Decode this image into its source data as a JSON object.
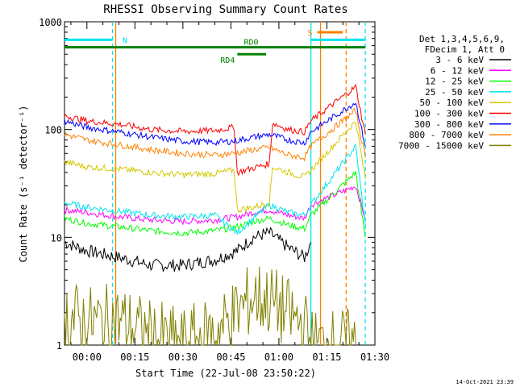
{
  "chart_data": {
    "type": "line",
    "title": "RHESSI Observing Summary Count Rates",
    "xlabel": "Start Time (22-Jul-08 23:50:22)",
    "ylabel": "Count Rate (s⁻¹ detector⁻¹)",
    "y_scale": "log",
    "ylim": [
      1,
      1000
    ],
    "xlim": [
      "23:53",
      "01:30"
    ],
    "x_ticks": [
      "00:00",
      "00:15",
      "00:30",
      "00:45",
      "01:00",
      "01:15",
      "01:30"
    ],
    "y_ticks": [
      "1",
      "10",
      "100",
      "1000"
    ],
    "legend_header": [
      "Det 1,3,4,5,6,9,",
      "FDecim 1, Att 0"
    ],
    "legend_position": "right",
    "footer": "14-Oct-2021 23:39",
    "flags": [
      {
        "label": "N",
        "start": "23:53",
        "end": "00:08",
        "level": 680,
        "color": "#00e5ee"
      },
      {
        "label": "",
        "start": "01:10",
        "end": "01:27",
        "level": 680,
        "color": "#00e5ee"
      },
      {
        "label": "S",
        "start": "01:12",
        "end": "01:20",
        "level": 800,
        "color": "#ff8000"
      },
      {
        "label": "RD0",
        "start": "23:53",
        "end": "01:27",
        "level": 580,
        "color": "#008000"
      },
      {
        "label": "RD4",
        "start": "00:47",
        "end": "00:56",
        "level": 500,
        "color": "#008000"
      }
    ],
    "vertical_markers": [
      {
        "time": "00:08",
        "color": "#00e5ee",
        "style": "dashed"
      },
      {
        "time": "01:10",
        "color": "#00e5ee",
        "style": "solid"
      },
      {
        "time": "01:27",
        "color": "#00e5ee",
        "style": "dashed"
      },
      {
        "time": "00:09",
        "color": "#ff8000",
        "style": "solid"
      },
      {
        "time": "01:13",
        "color": "#ff8000",
        "style": "solid"
      },
      {
        "time": "01:21",
        "color": "#ff8000",
        "style": "dashed"
      }
    ],
    "series": [
      {
        "name": "3 - 6 keV",
        "color": "#000000",
        "points": [
          [
            "23:53",
            9
          ],
          [
            "00:00",
            7.5
          ],
          [
            "00:10",
            6.5
          ],
          [
            "00:20",
            5.5
          ],
          [
            "00:30",
            5.5
          ],
          [
            "00:40",
            6.2
          ],
          [
            "00:47",
            7.5
          ],
          [
            "00:52",
            10
          ],
          [
            "00:57",
            11
          ],
          [
            "01:03",
            8
          ],
          [
            "01:08",
            6.5
          ],
          [
            "01:10",
            9
          ]
        ]
      },
      {
        "name": "6 - 12 keV",
        "color": "#ff00ff",
        "points": [
          [
            "23:53",
            18
          ],
          [
            "00:00",
            17
          ],
          [
            "00:10",
            15.5
          ],
          [
            "00:20",
            14.5
          ],
          [
            "00:30",
            14
          ],
          [
            "00:40",
            14.5
          ],
          [
            "00:47",
            15.5
          ],
          [
            "00:52",
            17
          ],
          [
            "00:57",
            18
          ],
          [
            "01:03",
            16
          ],
          [
            "01:08",
            15
          ],
          [
            "01:10",
            20
          ],
          [
            "01:24",
            30
          ],
          [
            "01:27",
            15
          ]
        ]
      },
      {
        "name": "12 - 25 keV",
        "color": "#00ff00",
        "points": [
          [
            "23:53",
            15
          ],
          [
            "00:00",
            13.5
          ],
          [
            "00:10",
            12.5
          ],
          [
            "00:20",
            11.5
          ],
          [
            "00:30",
            11
          ],
          [
            "00:40",
            11.5
          ],
          [
            "00:47",
            12.5
          ],
          [
            "00:52",
            14
          ],
          [
            "00:57",
            15
          ],
          [
            "01:03",
            13
          ],
          [
            "01:08",
            12
          ],
          [
            "01:10",
            16
          ],
          [
            "01:24",
            40
          ],
          [
            "01:27",
            10
          ]
        ]
      },
      {
        "name": "25 - 50 keV",
        "color": "#00e5ee",
        "points": [
          [
            "23:53",
            21
          ],
          [
            "00:00",
            19
          ],
          [
            "00:10",
            17.5
          ],
          [
            "00:20",
            16
          ],
          [
            "00:30",
            15.5
          ],
          [
            "00:40",
            16
          ],
          [
            "00:47",
            11
          ],
          [
            "00:52",
            15
          ],
          [
            "00:57",
            20
          ],
          [
            "01:03",
            17
          ],
          [
            "01:08",
            16
          ],
          [
            "01:10",
            20
          ],
          [
            "01:24",
            70
          ],
          [
            "01:27",
            13
          ]
        ]
      },
      {
        "name": "50 - 100 keV",
        "color": "#d4c800",
        "points": [
          [
            "23:53",
            50
          ],
          [
            "00:00",
            45
          ],
          [
            "00:10",
            43
          ],
          [
            "00:20",
            40
          ],
          [
            "00:30",
            38
          ],
          [
            "00:40",
            39
          ],
          [
            "00:46",
            42
          ],
          [
            "00:47",
            18
          ],
          [
            "00:52",
            19
          ],
          [
            "00:57",
            21
          ],
          [
            "00:58",
            45
          ],
          [
            "01:03",
            40
          ],
          [
            "01:08",
            36
          ],
          [
            "01:10",
            42
          ],
          [
            "01:24",
            120
          ],
          [
            "01:27",
            35
          ]
        ]
      },
      {
        "name": "100 - 300 keV",
        "color": "#ff0000",
        "points": [
          [
            "23:53",
            135
          ],
          [
            "00:00",
            120
          ],
          [
            "00:10",
            112
          ],
          [
            "00:20",
            100
          ],
          [
            "00:30",
            96
          ],
          [
            "00:40",
            98
          ],
          [
            "00:46",
            105
          ],
          [
            "00:47",
            40
          ],
          [
            "00:52",
            44
          ],
          [
            "00:57",
            48
          ],
          [
            "00:58",
            115
          ],
          [
            "01:03",
            100
          ],
          [
            "01:08",
            95
          ],
          [
            "01:10",
            120
          ],
          [
            "01:24",
            250
          ],
          [
            "01:27",
            90
          ]
        ]
      },
      {
        "name": "300 - 800 keV",
        "color": "#0000ff",
        "points": [
          [
            "23:53",
            120
          ],
          [
            "00:00",
            105
          ],
          [
            "00:10",
            95
          ],
          [
            "00:20",
            85
          ],
          [
            "00:30",
            78
          ],
          [
            "00:40",
            76
          ],
          [
            "00:46",
            78
          ],
          [
            "00:52",
            85
          ],
          [
            "00:57",
            90
          ],
          [
            "01:03",
            80
          ],
          [
            "01:08",
            75
          ],
          [
            "01:10",
            95
          ],
          [
            "01:24",
            180
          ],
          [
            "01:27",
            70
          ]
        ]
      },
      {
        "name": "800 - 7000 keV",
        "color": "#ff8000",
        "points": [
          [
            "23:53",
            90
          ],
          [
            "00:00",
            80
          ],
          [
            "00:10",
            72
          ],
          [
            "00:20",
            65
          ],
          [
            "00:30",
            60
          ],
          [
            "00:40",
            58
          ],
          [
            "00:46",
            60
          ],
          [
            "00:52",
            65
          ],
          [
            "00:57",
            68
          ],
          [
            "01:03",
            58
          ],
          [
            "01:08",
            55
          ],
          [
            "01:10",
            70
          ],
          [
            "01:24",
            150
          ],
          [
            "01:27",
            55
          ]
        ]
      },
      {
        "name": "7000 - 15000 keV",
        "color": "#808000",
        "points": [
          [
            "23:53",
            1.9
          ],
          [
            "00:00",
            1.6
          ],
          [
            "00:10",
            1.7
          ],
          [
            "00:20",
            1.2
          ],
          [
            "00:30",
            1
          ],
          [
            "00:40",
            1.3
          ],
          [
            "00:47",
            2
          ],
          [
            "00:52",
            2.8
          ],
          [
            "00:57",
            2.6
          ],
          [
            "01:03",
            1.9
          ],
          [
            "01:08",
            1.5
          ],
          [
            "01:10",
            1
          ],
          [
            "01:24",
            1
          ]
        ]
      }
    ]
  }
}
